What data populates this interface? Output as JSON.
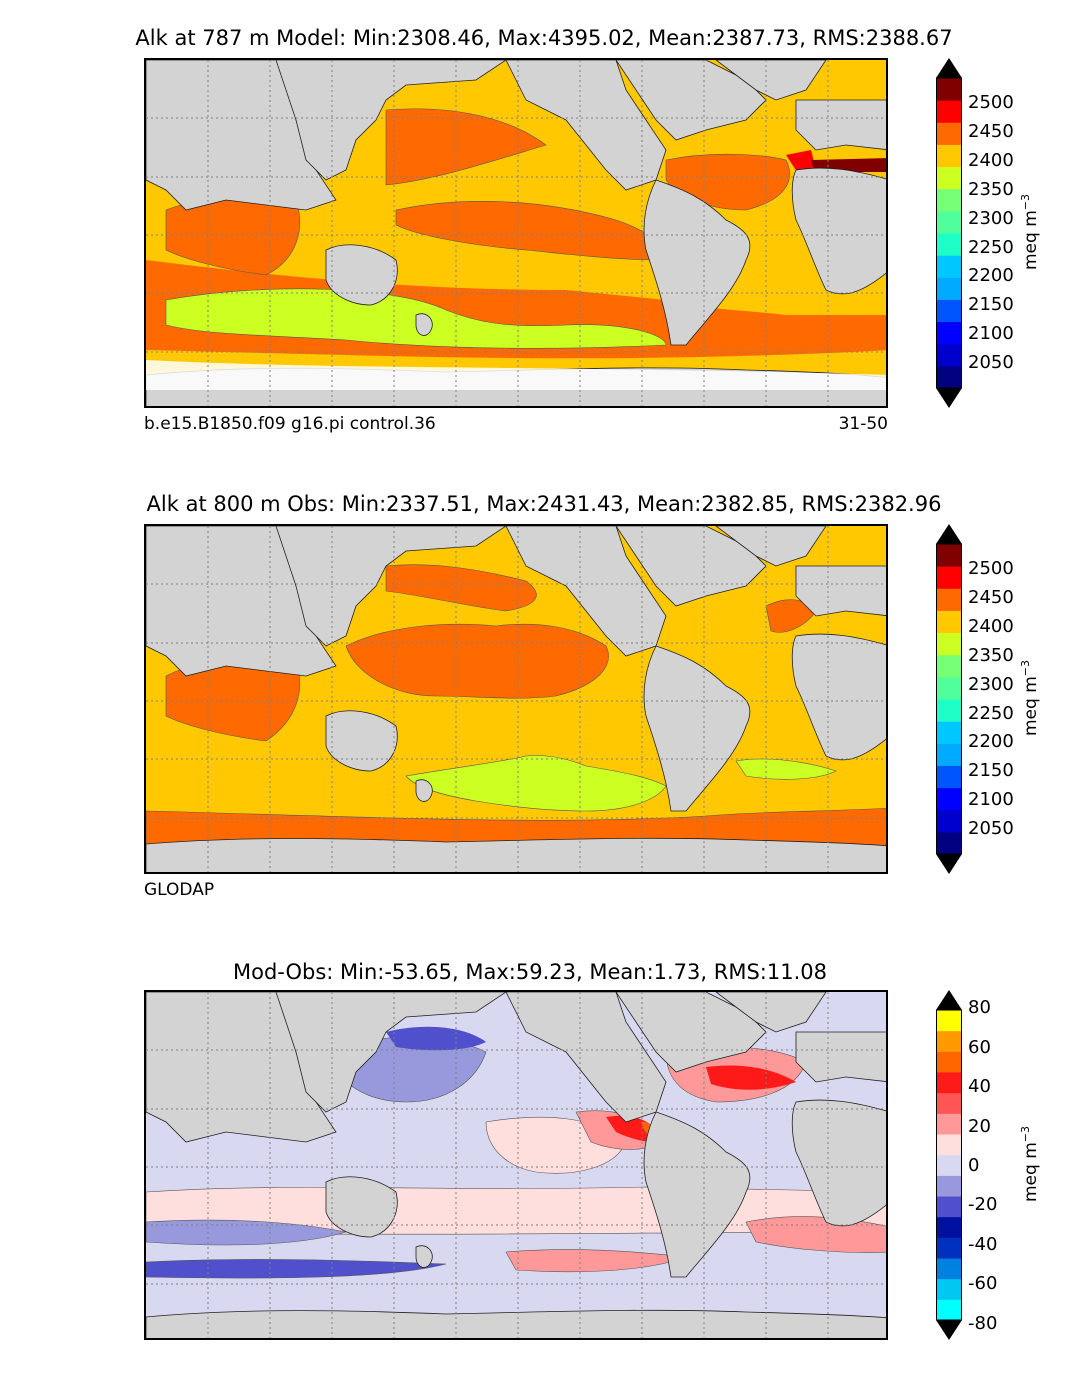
{
  "chart_data": [
    {
      "type": "heatmap",
      "panel": "model",
      "title": "Alk at 787 m Model: Min:2308.46, Max:4395.02, Mean:2387.73, RMS:2388.67",
      "caption_left": "b.e15.B1850.f09 g16.pi control.36",
      "caption_right": "31-50",
      "stats": {
        "min": 2308.46,
        "max": 4395.02,
        "mean": 2387.73,
        "rms": 2388.67
      },
      "depth_m": 787,
      "colorbar": {
        "label": "meq m",
        "label_exponent": "−3",
        "ticks": [
          "2500",
          "2450",
          "2400",
          "2350",
          "2300",
          "2250",
          "2200",
          "2150",
          "2100",
          "2050"
        ],
        "levels": [
          2000,
          2025,
          2050,
          2075,
          2100,
          2125,
          2150,
          2175,
          2200,
          2225,
          2250,
          2275,
          2300,
          2325,
          2350,
          2375,
          2400,
          2425,
          2450,
          2475,
          2500,
          2525
        ],
        "colors": [
          "#000080",
          "#0000cd",
          "#0000ff",
          "#0055ff",
          "#00aaff",
          "#00c8ff",
          "#1effc8",
          "#50ff9b",
          "#78ff78",
          "#ccff22",
          "#ffc800",
          "#ff6a00",
          "#ff0000",
          "#800000"
        ],
        "extend": "both"
      }
    },
    {
      "type": "heatmap",
      "panel": "obs",
      "title": "Alk at 800 m Obs: Min:2337.51, Max:2431.43, Mean:2382.85, RMS:2382.96",
      "caption_left": "GLODAP",
      "stats": {
        "min": 2337.51,
        "max": 2431.43,
        "mean": 2382.85,
        "rms": 2382.96
      },
      "depth_m": 800,
      "colorbar": {
        "label": "meq m",
        "label_exponent": "−3",
        "ticks": [
          "2500",
          "2450",
          "2400",
          "2350",
          "2300",
          "2250",
          "2200",
          "2150",
          "2100",
          "2050"
        ],
        "colors": [
          "#000080",
          "#0000cd",
          "#0000ff",
          "#0055ff",
          "#00aaff",
          "#00c8ff",
          "#1effc8",
          "#50ff9b",
          "#78ff78",
          "#ccff22",
          "#ffc800",
          "#ff6a00",
          "#ff0000",
          "#800000"
        ],
        "extend": "both"
      }
    },
    {
      "type": "heatmap",
      "panel": "diff",
      "title": "Mod-Obs: Min:-53.65, Max:59.23, Mean:1.73, RMS:11.08",
      "stats": {
        "min": -53.65,
        "max": 59.23,
        "mean": 1.73,
        "rms": 11.08
      },
      "colorbar": {
        "label": "meq m",
        "label_exponent": "−3",
        "ticks": [
          "80",
          "60",
          "40",
          "20",
          "0",
          "-20",
          "-40",
          "-60",
          "-80"
        ],
        "colors": [
          "#00ffff",
          "#00c8f0",
          "#0080e0",
          "#0030c0",
          "#0010a0",
          "#5050cc",
          "#9898dd",
          "#d8d8f0",
          "#ffdede",
          "#ff9999",
          "#ff5555",
          "#ff1a1a",
          "#ff6600",
          "#ff9900",
          "#ffff00"
        ],
        "extend": "both"
      }
    }
  ],
  "palette": {
    "land": "#d3d3d3",
    "ocean_missing": "#ffffff",
    "grid": "#808080",
    "frame": "#000000"
  }
}
